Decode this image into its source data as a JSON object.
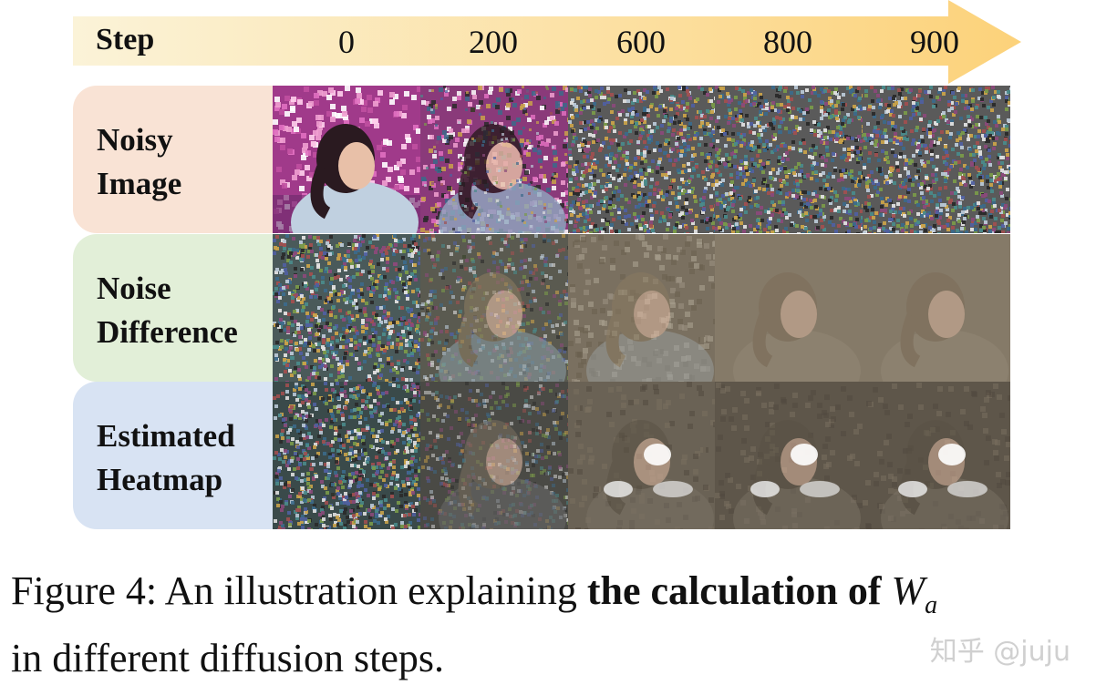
{
  "figure": {
    "step_label": "Step",
    "steps": [
      "0",
      "200",
      "600",
      "800",
      "900"
    ],
    "rows": [
      {
        "label": "Noisy\nImage",
        "color": "#f9e3d5"
      },
      {
        "label": "Noise\nDifference",
        "color": "#e2efd8"
      },
      {
        "label": "Estimated\nHeatmap",
        "color": "#d8e3f3"
      }
    ],
    "arrow_colors": [
      "#fbf3d8",
      "#fcd27a"
    ]
  },
  "caption": {
    "prefix": "Figure 4:",
    "text_before": " An illustration explaining ",
    "bold": "the calculation of",
    "symbol": "W",
    "subscript": "a",
    "text_after": "in different diffusion steps."
  },
  "watermark": "知乎 @juju"
}
